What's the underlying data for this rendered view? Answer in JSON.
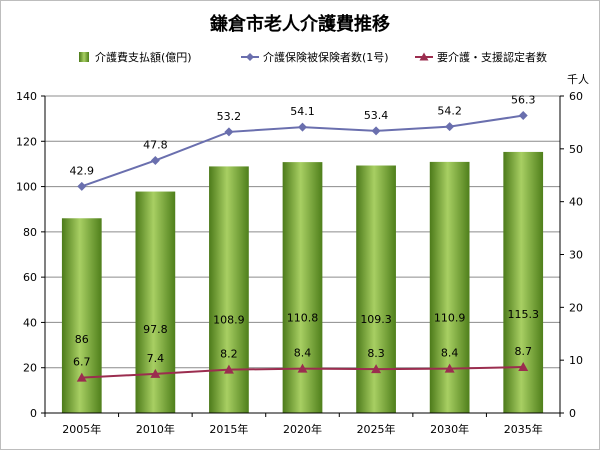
{
  "chart_data": {
    "type": "bar",
    "title": "鎌倉市老人介護費推移",
    "categories": [
      "2005年",
      "2010年",
      "2015年",
      "2020年",
      "2025年",
      "2030年",
      "2035年"
    ],
    "left_axis": {
      "ylim": [
        0,
        140
      ],
      "ticks": [
        0,
        20,
        40,
        60,
        80,
        100,
        120,
        140
      ],
      "label": ""
    },
    "right_axis": {
      "ylim": [
        0,
        60
      ],
      "ticks": [
        0,
        10,
        20,
        30,
        40,
        50,
        60
      ],
      "label": "千人"
    },
    "series": [
      {
        "name": "介護費支払額(億円)",
        "type": "bar",
        "axis": "left",
        "color": "#6f9a2b",
        "values": [
          86,
          97.8,
          108.9,
          110.8,
          109.3,
          110.9,
          115.3
        ],
        "labels": [
          "86",
          "97.8",
          "108.9",
          "110.8",
          "109.3",
          "110.9",
          "115.3"
        ]
      },
      {
        "name": "介護保険被保険者数(1号)",
        "type": "line",
        "axis": "right",
        "color": "#6a6fae",
        "marker": "diamond",
        "values": [
          42.9,
          47.8,
          53.2,
          54.1,
          53.4,
          54.2,
          56.3
        ],
        "labels": [
          "42.9",
          "47.8",
          "53.2",
          "54.1",
          "53.4",
          "54.2",
          "56.3"
        ]
      },
      {
        "name": "要介護・支援認定者数",
        "type": "line",
        "axis": "right",
        "color": "#9b2d4f",
        "marker": "triangle",
        "values": [
          6.7,
          7.4,
          8.2,
          8.4,
          8.3,
          8.4,
          8.7
        ],
        "labels": [
          "6.7",
          "7.4",
          "8.2",
          "8.4",
          "8.3",
          "8.4",
          "8.7"
        ]
      }
    ],
    "legend_position": "top",
    "grid": true
  }
}
